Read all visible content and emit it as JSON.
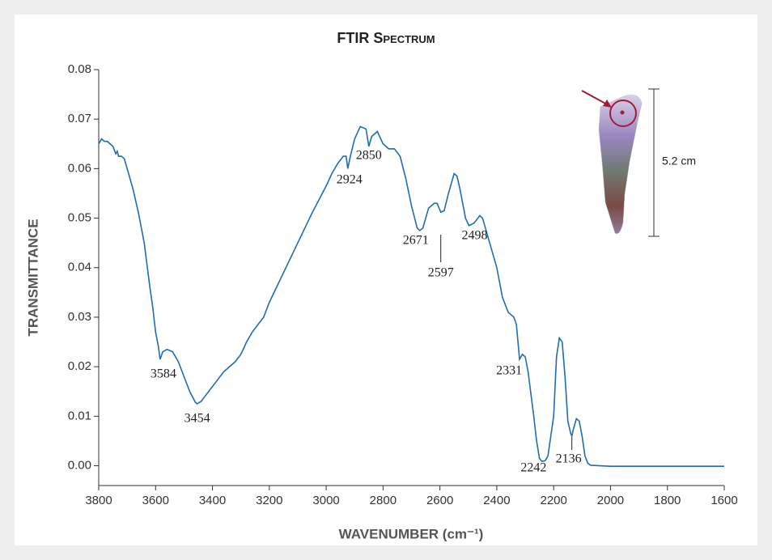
{
  "chart_data": {
    "type": "line",
    "title": "FTIR Spectrum",
    "x_label": "WAVENUMBER (cm⁻¹)",
    "y_label": "TRANSMITTANCE",
    "color": "#1f6db4",
    "xlim": [
      3800,
      1600
    ],
    "ylim": [
      -0.004,
      0.08
    ],
    "xticks": [
      3800,
      3600,
      3400,
      3200,
      3000,
      2800,
      2600,
      2400,
      2200,
      2000,
      1800,
      1600
    ],
    "yticks": [
      {
        "value": 0,
        "label": "0.00"
      },
      0.01,
      0.02,
      0.03,
      0.04,
      0.05,
      0.06,
      0.07,
      0.08
    ],
    "grid": false,
    "x": [
      3800,
      3790,
      3780,
      3770,
      3760,
      3750,
      3740,
      3735,
      3730,
      3720,
      3710,
      3700,
      3680,
      3660,
      3640,
      3620,
      3610,
      3600,
      3590,
      3584,
      3575,
      3560,
      3540,
      3520,
      3500,
      3480,
      3460,
      3454,
      3440,
      3420,
      3400,
      3380,
      3360,
      3340,
      3320,
      3300,
      3280,
      3260,
      3240,
      3220,
      3200,
      3150,
      3100,
      3050,
      3000,
      2980,
      2960,
      2940,
      2930,
      2924,
      2915,
      2900,
      2880,
      2860,
      2850,
      2840,
      2820,
      2800,
      2780,
      2760,
      2740,
      2720,
      2700,
      2680,
      2671,
      2660,
      2640,
      2620,
      2610,
      2597,
      2585,
      2570,
      2550,
      2540,
      2530,
      2510,
      2498,
      2480,
      2460,
      2450,
      2430,
      2400,
      2380,
      2360,
      2340,
      2331,
      2320,
      2310,
      2300,
      2290,
      2270,
      2260,
      2250,
      2242,
      2230,
      2220,
      2200,
      2190,
      2180,
      2170,
      2160,
      2150,
      2140,
      2136,
      2130,
      2120,
      2110,
      2100,
      2090,
      2080,
      2070,
      2000,
      1800,
      1600
    ],
    "values": [
      0.065,
      0.066,
      0.0655,
      0.0655,
      0.065,
      0.0645,
      0.063,
      0.0635,
      0.0625,
      0.0625,
      0.062,
      0.06,
      0.056,
      0.051,
      0.045,
      0.036,
      0.032,
      0.027,
      0.024,
      0.0215,
      0.023,
      0.0235,
      0.023,
      0.021,
      0.018,
      0.015,
      0.0128,
      0.0125,
      0.013,
      0.0145,
      0.016,
      0.0175,
      0.019,
      0.02,
      0.021,
      0.0225,
      0.025,
      0.027,
      0.0285,
      0.03,
      0.033,
      0.039,
      0.045,
      0.051,
      0.0565,
      0.059,
      0.061,
      0.0625,
      0.0625,
      0.06,
      0.0625,
      0.066,
      0.0685,
      0.068,
      0.0645,
      0.0665,
      0.0675,
      0.065,
      0.064,
      0.064,
      0.0625,
      0.058,
      0.0525,
      0.048,
      0.0475,
      0.048,
      0.052,
      0.053,
      0.053,
      0.0512,
      0.0515,
      0.055,
      0.059,
      0.0585,
      0.056,
      0.05,
      0.0485,
      0.049,
      0.0505,
      0.05,
      0.046,
      0.04,
      0.034,
      0.031,
      0.03,
      0.0285,
      0.0215,
      0.0225,
      0.022,
      0.019,
      0.01,
      0.005,
      0.0015,
      0.0009,
      0.001,
      0.002,
      0.01,
      0.022,
      0.0258,
      0.025,
      0.018,
      0.009,
      0.0065,
      0.006,
      0.0075,
      0.0095,
      0.009,
      0.006,
      0.002,
      0.0005,
      0.0001,
      -0.0001,
      -0.0001,
      -0.0001
    ],
    "annotations": [
      {
        "text": "3584",
        "x": 3584
      },
      {
        "text": "3454",
        "x": 3454
      },
      {
        "text": "2924",
        "x": 2924
      },
      {
        "text": "2850",
        "x": 2850
      },
      {
        "text": "2671",
        "x": 2671
      },
      {
        "text": "2597",
        "x": 2597
      },
      {
        "text": "2498",
        "x": 2498
      },
      {
        "text": "2331",
        "x": 2331
      },
      {
        "text": "2242",
        "x": 2242
      },
      {
        "text": "2136",
        "x": 2136
      }
    ],
    "inset_scale_label": "5.2 cm"
  }
}
